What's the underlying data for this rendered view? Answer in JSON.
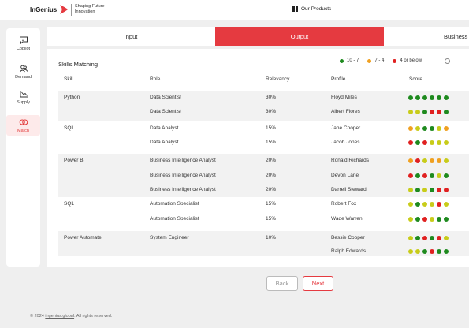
{
  "header": {
    "logo_text": "InGenius",
    "tagline_line1": "Shaping Future",
    "tagline_line2": "Innovation",
    "products_label": "Our Products"
  },
  "sidebar": {
    "items": [
      {
        "label": "Copilot",
        "icon": "chat-icon",
        "active": false
      },
      {
        "label": "Demand",
        "icon": "people-icon",
        "active": false
      },
      {
        "label": "Supply",
        "icon": "chart-icon",
        "active": false
      },
      {
        "label": "Match",
        "icon": "rings-icon",
        "active": true
      }
    ]
  },
  "tabs": [
    {
      "label": "Input",
      "active": false
    },
    {
      "label": "Output",
      "active": true
    },
    {
      "label": "Business",
      "active": false
    }
  ],
  "panel": {
    "title": "Skills Matching",
    "legend": [
      {
        "label": "10 - 7",
        "color": "#1e8a1e"
      },
      {
        "label": "7 - 4",
        "color": "#f0a020"
      },
      {
        "label": "4 or below",
        "color": "#e02020"
      }
    ]
  },
  "table": {
    "headers": [
      "Skill",
      "Role",
      "Relevancy",
      "Profile",
      "Score"
    ],
    "groups": [
      {
        "skill": "Python",
        "rows": [
          {
            "role": "Data Scientist",
            "relevancy": "30%",
            "profile": "Floyd Miles",
            "score": [
              "g",
              "g",
              "g",
              "g",
              "g",
              "g"
            ]
          },
          {
            "role": "Data Scientist",
            "relevancy": "30%",
            "profile": "Albert Flores",
            "score": [
              "y",
              "y",
              "g",
              "r",
              "r",
              "g"
            ]
          }
        ]
      },
      {
        "skill": "SQL",
        "rows": [
          {
            "role": "Data Analyst",
            "relevancy": "15%",
            "profile": "Jane Cooper",
            "score": [
              "o",
              "y",
              "g",
              "g",
              "y",
              "o"
            ]
          },
          {
            "role": "Data Analyst",
            "relevancy": "15%",
            "profile": "Jacob Jones",
            "score": [
              "r",
              "g",
              "r",
              "y",
              "y",
              "y"
            ]
          }
        ]
      },
      {
        "skill": "Power BI",
        "rows": [
          {
            "role": "Business Intelligence Analyst",
            "relevancy": "20%",
            "profile": "Ronald Richards",
            "score": [
              "o",
              "r",
              "y",
              "o",
              "o",
              "y"
            ]
          },
          {
            "role": "Business Intelligence Analyst",
            "relevancy": "20%",
            "profile": "Devon Lane",
            "score": [
              "r",
              "g",
              "r",
              "g",
              "y",
              "g"
            ]
          },
          {
            "role": "Business Intelligence Analyst",
            "relevancy": "20%",
            "profile": "Darrell Steward",
            "score": [
              "y",
              "g",
              "y",
              "g",
              "r",
              "r"
            ]
          }
        ]
      },
      {
        "skill": "SQL",
        "rows": [
          {
            "role": "Automation Specialist",
            "relevancy": "15%",
            "profile": "Robert Fox",
            "score": [
              "y",
              "g",
              "y",
              "y",
              "r",
              "y"
            ]
          },
          {
            "role": "Automation Specialist",
            "relevancy": "15%",
            "profile": "Wade Warren",
            "score": [
              "y",
              "g",
              "r",
              "y",
              "g",
              "g"
            ]
          }
        ]
      },
      {
        "skill": "Power Automate",
        "rows": [
          {
            "role": "System Engineer",
            "relevancy": "10%",
            "profile": "Bessie Cooper",
            "score": [
              "y",
              "g",
              "r",
              "g",
              "r",
              "y"
            ]
          },
          {
            "role": "",
            "relevancy": "",
            "profile": "Ralph Edwards",
            "score": [
              "y",
              "y",
              "g",
              "r",
              "g",
              "g"
            ]
          }
        ]
      }
    ]
  },
  "buttons": {
    "back": "Back",
    "next": "Next"
  },
  "footer": {
    "prefix": "© 2024",
    "link": "ingenius.global",
    "suffix": ". All rights reserved."
  },
  "colors": {
    "g": "#1e8a1e",
    "o": "#f0a020",
    "r": "#e02020",
    "y": "#c8cc1a",
    "accent": "#e53a40"
  }
}
